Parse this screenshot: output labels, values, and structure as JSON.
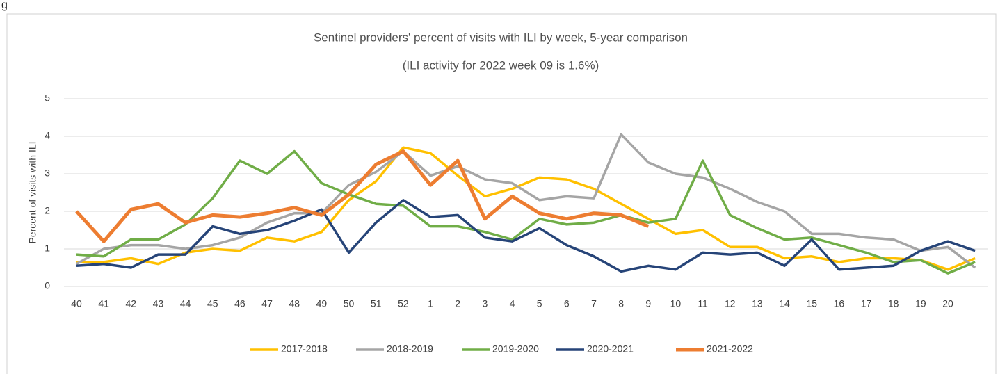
{
  "caption": "g",
  "chart_data": {
    "type": "line",
    "title": "Sentinel providers' percent of visits with ILI by week, 5-year comparison",
    "subtitle": "(ILI activity for 2022 week 09 is 1.6%)",
    "y_label": "Percent of visits with ILI",
    "categories": [
      "40",
      "41",
      "42",
      "43",
      "44",
      "45",
      "46",
      "47",
      "48",
      "49",
      "50",
      "51",
      "52",
      "1",
      "2",
      "3",
      "4",
      "5",
      "6",
      "7",
      "8",
      "9",
      "10",
      "11",
      "12",
      "13",
      "14",
      "15",
      "16",
      "17",
      "18",
      "19",
      "20",
      null
    ],
    "ylim": [
      0,
      5
    ],
    "yticks": [
      0,
      1,
      2,
      3,
      4,
      5
    ],
    "grid": true,
    "series": [
      {
        "name": "2017-2018",
        "color": "#FFC000",
        "values": [
          0.65,
          0.65,
          0.75,
          0.6,
          0.9,
          1.0,
          0.95,
          1.3,
          1.2,
          1.45,
          2.3,
          2.8,
          3.7,
          3.55,
          2.95,
          2.4,
          2.6,
          2.9,
          2.85,
          2.6,
          2.2,
          1.8,
          1.4,
          1.5,
          1.05,
          1.05,
          0.75,
          0.8,
          0.65,
          0.75,
          0.75,
          0.7,
          0.45,
          0.75
        ]
      },
      {
        "name": "2018-2019",
        "color": "#A5A5A5",
        "values": [
          0.6,
          1.0,
          1.1,
          1.1,
          1.0,
          1.1,
          1.3,
          1.7,
          1.95,
          1.95,
          2.7,
          3.05,
          3.6,
          2.95,
          3.2,
          2.85,
          2.75,
          2.3,
          2.4,
          2.35,
          4.05,
          3.3,
          3.0,
          2.9,
          2.6,
          2.25,
          2.0,
          1.4,
          1.4,
          1.3,
          1.25,
          0.95,
          1.05,
          0.5
        ]
      },
      {
        "name": "2019-2020",
        "color": "#70AD47",
        "values": [
          0.85,
          0.8,
          1.25,
          1.25,
          1.65,
          2.35,
          3.35,
          3.0,
          3.6,
          2.75,
          2.45,
          2.2,
          2.15,
          1.6,
          1.6,
          1.45,
          1.25,
          1.8,
          1.65,
          1.7,
          1.9,
          1.7,
          1.8,
          3.35,
          1.9,
          1.55,
          1.25,
          1.3,
          1.1,
          0.9,
          0.65,
          0.7,
          0.35,
          0.65
        ]
      },
      {
        "name": "2020-2021",
        "color": "#264478",
        "values": [
          0.55,
          0.6,
          0.5,
          0.85,
          0.85,
          1.6,
          1.4,
          1.5,
          1.75,
          2.05,
          0.9,
          1.7,
          2.3,
          1.85,
          1.9,
          1.3,
          1.2,
          1.55,
          1.1,
          0.8,
          0.4,
          0.55,
          0.45,
          0.9,
          0.85,
          0.9,
          0.55,
          1.25,
          0.45,
          0.5,
          0.55,
          0.95,
          1.2,
          0.95
        ]
      },
      {
        "name": "2021-2022",
        "color": "#ED7D31",
        "values": [
          2.0,
          1.2,
          2.05,
          2.2,
          1.7,
          1.9,
          1.85,
          1.95,
          2.1,
          1.9,
          2.45,
          3.25,
          3.6,
          2.7,
          3.35,
          1.8,
          2.4,
          1.95,
          1.8,
          1.95,
          1.9,
          1.6,
          null,
          null,
          null,
          null,
          null,
          null,
          null,
          null,
          null,
          null,
          null,
          null
        ]
      }
    ]
  }
}
